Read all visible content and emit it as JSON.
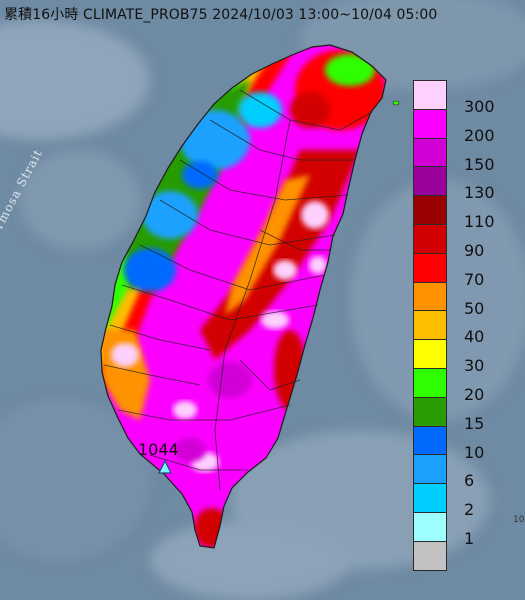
{
  "map": {
    "title": "累積16小時 CLIMATE_PROB75 2024/10/03 13:00~10/04 05:00",
    "water_label": "Formosa Strait",
    "station_label": "1044",
    "corner_label": "10"
  },
  "legend": {
    "entries": [
      {
        "label": "300",
        "color": "#fdd0fe"
      },
      {
        "label": "200",
        "color": "#fb00fe"
      },
      {
        "label": "150",
        "color": "#d200d6"
      },
      {
        "label": "130",
        "color": "#9a009c"
      },
      {
        "label": "110",
        "color": "#9a0000"
      },
      {
        "label": "90",
        "color": "#d20000"
      },
      {
        "label": "70",
        "color": "#fe0000"
      },
      {
        "label": "50",
        "color": "#fe9200"
      },
      {
        "label": "40",
        "color": "#febe00"
      },
      {
        "label": "30",
        "color": "#fefe00"
      },
      {
        "label": "20",
        "color": "#2efe00"
      },
      {
        "label": "15",
        "color": "#289c00"
      },
      {
        "label": "10",
        "color": "#006afe"
      },
      {
        "label": "6",
        "color": "#1aa1fe"
      },
      {
        "label": "2",
        "color": "#00cefe"
      },
      {
        "label": "1",
        "color": "#9efefe"
      },
      {
        "label": "",
        "color": "#c2c2c2"
      }
    ]
  }
}
